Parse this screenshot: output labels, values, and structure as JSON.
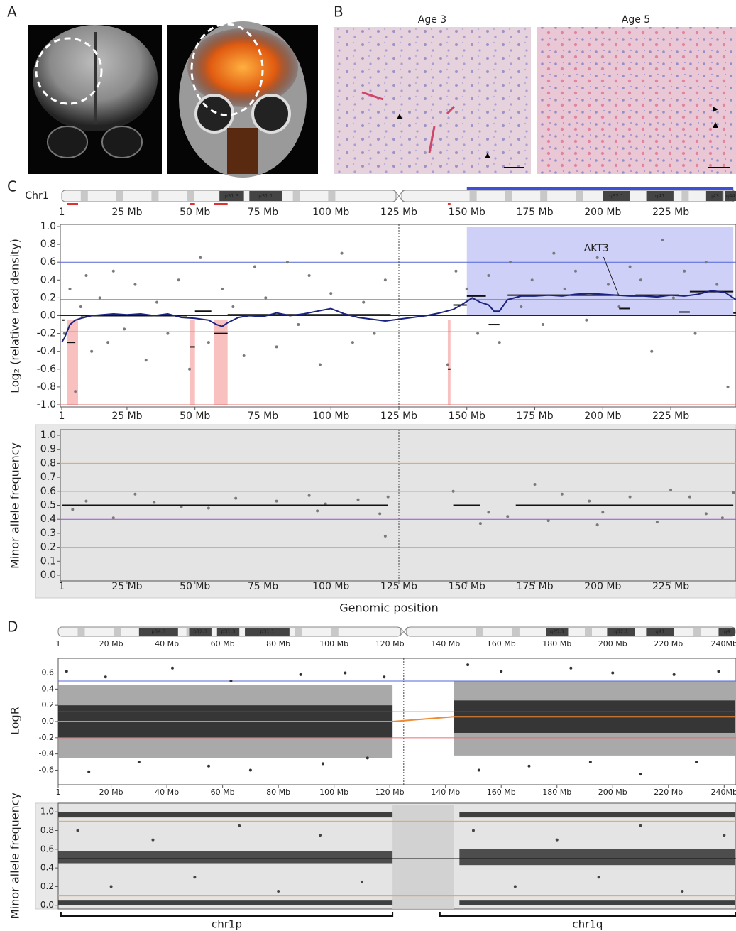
{
  "panel_labels": [
    "A",
    "B",
    "C",
    "D"
  ],
  "histology_titles": [
    "Age 3",
    "Age 5"
  ],
  "chart_data": [
    {
      "type": "scatter",
      "chromosome": "Chr1",
      "ylabel": "Log₂ (relative read density)",
      "xlim": [
        1,
        249
      ],
      "xticks": [
        1,
        {
          "value": 25,
          "label": "25 Mb"
        },
        {
          "value": 50,
          "label": "50 Mb"
        },
        {
          "value": 75,
          "label": "75 Mb"
        },
        {
          "value": 100,
          "label": "100 Mb"
        },
        {
          "value": 125,
          "label": "125 Mb"
        },
        {
          "value": 150,
          "label": "150 Mb"
        },
        {
          "value": 175,
          "label": "175 Mb"
        },
        {
          "value": 200,
          "label": "200 Mb"
        },
        {
          "value": 225,
          "label": "225 Mb"
        }
      ],
      "ylim": [
        -1,
        1
      ],
      "yticks": [
        {
          "value": -1,
          "label": "-1.0"
        },
        {
          "value": -0.8,
          "label": "-0.8"
        },
        {
          "value": -0.6,
          "label": "-0.6"
        },
        {
          "value": -0.4,
          "label": "-0.4"
        },
        {
          "value": -0.2,
          "label": "-0.2"
        },
        {
          "value": 0,
          "label": "0.0"
        },
        {
          "value": 0.2,
          "label": "0.2"
        },
        {
          "value": 0.4,
          "label": "0.4"
        },
        {
          "value": 0.6,
          "label": "0.6"
        },
        {
          "value": 0.8,
          "label": "0.8"
        },
        {
          "value": 1,
          "label": "1.0"
        }
      ],
      "ideogram": [
        {
          "label": "p31.3",
          "start": 59,
          "end": 68
        },
        {
          "label": "p31.1",
          "start": 70,
          "end": 82
        },
        {
          "label": "q32.1",
          "start": 200,
          "end": 210
        },
        {
          "label": "q41",
          "start": 216,
          "end": 226
        },
        {
          "label": "q43",
          "start": 238,
          "end": 244
        },
        {
          "label": "q44",
          "start": 245,
          "end": 249
        }
      ],
      "regions": [
        {
          "start": 150,
          "end": 248,
          "low": 0,
          "high": 1,
          "color": "#c9cbf6"
        },
        {
          "start": 3,
          "end": 7,
          "low": -1,
          "high": -0.05,
          "color": "#f8b9b9"
        },
        {
          "start": 48,
          "end": 50,
          "low": -1,
          "high": -0.05,
          "color": "#f8b9b9"
        },
        {
          "start": 57,
          "end": 62,
          "low": -1,
          "high": -0.05,
          "color": "#f8b9b9"
        },
        {
          "start": 143,
          "end": 144,
          "low": -1,
          "high": -0.05,
          "color": "#f8b9b9"
        }
      ],
      "hlines": [
        {
          "value": 0.6,
          "color": "#5566d8"
        },
        {
          "value": 0.18,
          "color": "#5566d8"
        },
        {
          "value": 0,
          "color": "#222"
        },
        {
          "value": -0.18,
          "color": "#e07070"
        },
        {
          "value": -1,
          "color": "#e07070"
        }
      ],
      "vline": 125,
      "points": {
        "color": "#7a7a7a",
        "x": [
          2,
          4,
          6,
          8,
          10,
          12,
          15,
          18,
          20,
          24,
          28,
          32,
          36,
          40,
          44,
          48,
          52,
          55,
          60,
          64,
          68,
          72,
          76,
          80,
          84,
          88,
          92,
          96,
          100,
          104,
          108,
          112,
          116,
          120,
          143,
          146,
          150,
          154,
          158,
          162,
          166,
          170,
          174,
          178,
          182,
          186,
          190,
          194,
          198,
          202,
          206,
          210,
          214,
          218,
          222,
          226,
          230,
          234,
          238,
          242,
          246
        ],
        "values": [
          -0.2,
          0.3,
          -0.85,
          0.1,
          0.45,
          -0.4,
          0.2,
          -0.3,
          0.5,
          -0.15,
          0.35,
          -0.5,
          0.15,
          -0.2,
          0.4,
          -0.6,
          0.65,
          -0.3,
          0.3,
          0.1,
          -0.45,
          0.55,
          0.2,
          -0.35,
          0.6,
          -0.1,
          0.45,
          -0.55,
          0.25,
          0.7,
          -0.3,
          0.15,
          -0.2,
          0.4,
          -0.55,
          0.5,
          0.3,
          -0.2,
          0.45,
          -0.3,
          0.6,
          0.1,
          0.4,
          -0.1,
          0.7,
          0.3,
          0.5,
          -0.05,
          0.65,
          0.35,
          0.1,
          0.55,
          0.4,
          -0.4,
          0.85,
          0.2,
          0.5,
          -0.2,
          0.6,
          0.35,
          -0.8
        ]
      },
      "segments": {
        "color": "#111",
        "start": [
          1,
          3,
          8,
          48,
          50,
          57,
          62,
          143,
          145,
          150,
          158,
          165,
          206,
          212,
          228,
          232,
          248
        ],
        "end": [
          2,
          6,
          47,
          50,
          56,
          62,
          122,
          144,
          150,
          157,
          162,
          206,
          210,
          228,
          232,
          248,
          249
        ],
        "values": [
          -0.05,
          -0.3,
          0,
          -0.35,
          0.05,
          -0.2,
          0.01,
          -0.6,
          0.12,
          0.22,
          -0.1,
          0.23,
          0.08,
          0.23,
          0.04,
          0.27,
          0.03
        ]
      },
      "line": {
        "color": "#1a237e",
        "x": [
          1,
          2,
          4,
          6,
          8,
          12,
          16,
          20,
          25,
          30,
          35,
          40,
          45,
          50,
          55,
          58,
          60,
          62,
          66,
          70,
          75,
          80,
          85,
          90,
          95,
          100,
          105,
          110,
          115,
          120,
          125,
          130,
          135,
          140,
          145,
          148,
          150,
          152,
          155,
          158,
          160,
          162,
          165,
          170,
          175,
          180,
          185,
          190,
          195,
          200,
          205,
          210,
          215,
          220,
          225,
          230,
          235,
          240,
          245,
          249
        ],
        "values": [
          -0.3,
          -0.25,
          -0.1,
          -0.05,
          -0.03,
          0,
          0.01,
          0.02,
          0.01,
          0.02,
          0,
          0.02,
          -0.02,
          -0.03,
          -0.05,
          -0.1,
          -0.12,
          -0.08,
          -0.02,
          0,
          -0.01,
          0.03,
          0,
          0.02,
          0.05,
          0.08,
          0.02,
          -0.02,
          -0.04,
          -0.06,
          -0.04,
          -0.02,
          0,
          0.03,
          0.07,
          0.12,
          0.16,
          0.2,
          0.15,
          0.12,
          0.05,
          0.05,
          0.18,
          0.22,
          0.22,
          0.23,
          0.22,
          0.24,
          0.25,
          0.24,
          0.23,
          0.22,
          0.22,
          0.21,
          0.23,
          0.22,
          0.24,
          0.28,
          0.26,
          0.18
        ]
      },
      "annotation": {
        "text": "AKT3",
        "x": 206,
        "y": 0.22
      }
    },
    {
      "type": "scatter",
      "ylabel": "Minor allele frequency",
      "xlabel": "Genomic position",
      "xlim": [
        1,
        249
      ],
      "xticks": [
        1,
        {
          "value": 25,
          "label": "25 Mb"
        },
        {
          "value": 50,
          "label": "50 Mb"
        },
        {
          "value": 75,
          "label": "75 Mb"
        },
        {
          "value": 100,
          "label": "100 Mb"
        },
        {
          "value": 125,
          "label": "125 Mb"
        },
        {
          "value": 150,
          "label": "150 Mb"
        },
        {
          "value": 175,
          "label": "175 Mb"
        },
        {
          "value": 200,
          "label": "200 Mb"
        },
        {
          "value": 225,
          "label": "225 Mb"
        }
      ],
      "ylim": [
        0,
        1
      ],
      "yticks": [
        {
          "value": 0,
          "label": "0.0"
        },
        {
          "value": 0.1,
          "label": "0.1"
        },
        {
          "value": 0.2,
          "label": "0.2"
        },
        {
          "value": 0.3,
          "label": "0.3"
        },
        {
          "value": 0.4,
          "label": "0.4"
        },
        {
          "value": 0.5,
          "label": "0.5"
        },
        {
          "value": 0.6,
          "label": "0.6"
        },
        {
          "value": 0.7,
          "label": "0.7"
        },
        {
          "value": 0.8,
          "label": "0.8"
        },
        {
          "value": 0.9,
          "label": "0.9"
        },
        {
          "value": 1,
          "label": "1.0"
        }
      ],
      "background": "#e4e4e4",
      "hlines": [
        {
          "value": 0.8,
          "color": "#e0a848"
        },
        {
          "value": 0.6,
          "color": "#9a4fd8"
        },
        {
          "value": 0.4,
          "color": "#9a4fd8"
        },
        {
          "value": 0.2,
          "color": "#e0a848"
        }
      ],
      "vline": 125,
      "points": {
        "color": "#7a7a7a",
        "x": [
          5,
          10,
          20,
          28,
          35,
          45,
          55,
          65,
          80,
          92,
          95,
          98,
          110,
          118,
          120,
          121,
          145,
          155,
          158,
          165,
          175,
          180,
          185,
          195,
          198,
          200,
          210,
          220,
          225,
          232,
          238,
          244,
          248
        ],
        "values": [
          0.47,
          0.53,
          0.41,
          0.58,
          0.52,
          0.49,
          0.48,
          0.55,
          0.53,
          0.57,
          0.46,
          0.51,
          0.54,
          0.44,
          0.28,
          0.56,
          0.6,
          0.37,
          0.45,
          0.42,
          0.65,
          0.39,
          0.58,
          0.53,
          0.36,
          0.45,
          0.56,
          0.38,
          0.61,
          0.56,
          0.44,
          0.41,
          0.59
        ]
      },
      "segments": {
        "color": "#111",
        "start": [
          1,
          145,
          168
        ],
        "end": [
          121,
          155,
          248
        ],
        "values": [
          0.5,
          0.5,
          0.5
        ]
      }
    },
    {
      "type": "scatter",
      "ylabel": "LogR",
      "xlim": [
        1,
        244
      ],
      "xticks": [
        1,
        {
          "value": 20,
          "label": "20 Mb"
        },
        {
          "value": 40,
          "label": "40 Mb"
        },
        {
          "value": 60,
          "label": "60 Mb"
        },
        {
          "value": 80,
          "label": "80 Mb"
        },
        {
          "value": 100,
          "label": "100 Mb"
        },
        {
          "value": 120,
          "label": "120 Mb"
        },
        {
          "value": 140,
          "label": "140 Mb"
        },
        {
          "value": 160,
          "label": "160 Mb"
        },
        {
          "value": 180,
          "label": "180 Mb"
        },
        {
          "value": 200,
          "label": "200 Mb"
        },
        {
          "value": 220,
          "label": "220 Mb"
        },
        {
          "value": 240,
          "label": "240Mb"
        }
      ],
      "ylim": [
        -0.78,
        0.78
      ],
      "yticks": [
        {
          "value": -0.6,
          "label": "-0.6"
        },
        {
          "value": -0.4,
          "label": "-0.4"
        },
        {
          "value": -0.2,
          "label": "-0.2"
        },
        {
          "value": 0,
          "label": "0.0"
        },
        {
          "value": 0.2,
          "label": "0.2"
        },
        {
          "value": 0.4,
          "label": "0.4"
        },
        {
          "value": 0.6,
          "label": "0.6"
        }
      ],
      "ideogram": [
        {
          "label": "p34.3",
          "start": 30,
          "end": 44
        },
        {
          "label": "p32.3",
          "start": 48,
          "end": 56
        },
        {
          "label": "p31.3",
          "start": 58,
          "end": 66
        },
        {
          "label": "p31.1",
          "start": 68,
          "end": 84
        },
        {
          "label": "q25.3",
          "start": 176,
          "end": 184
        },
        {
          "label": "q32.1",
          "start": 198,
          "end": 208
        },
        {
          "label": "q41",
          "start": 212,
          "end": 222
        },
        {
          "label": "q4",
          "start": 238,
          "end": 244
        }
      ],
      "bands": [
        {
          "start": 1,
          "end": 121,
          "low": -0.45,
          "high": 0.45,
          "color": "#9a9a9a"
        },
        {
          "start": 143,
          "end": 244,
          "low": -0.42,
          "high": 0.5,
          "color": "#9a9a9a"
        },
        {
          "start": 1,
          "end": 121,
          "low": -0.2,
          "high": 0.2,
          "color": "#222"
        },
        {
          "start": 143,
          "end": 244,
          "low": -0.14,
          "high": 0.26,
          "color": "#222"
        }
      ],
      "hlines": [
        {
          "value": 0.5,
          "color": "#5566d8"
        },
        {
          "value": 0.12,
          "color": "#5566d8"
        },
        {
          "value": -0.2,
          "color": "#e07070"
        }
      ],
      "vline": 125,
      "points": {
        "color": "#333",
        "x": [
          4,
          12,
          18,
          30,
          42,
          55,
          63,
          70,
          88,
          96,
          104,
          112,
          118,
          148,
          152,
          160,
          170,
          185,
          192,
          200,
          210,
          222,
          230,
          238
        ],
        "values": [
          0.62,
          -0.62,
          0.55,
          -0.5,
          0.66,
          -0.55,
          0.5,
          -0.6,
          0.58,
          -0.52,
          0.6,
          -0.45,
          0.55,
          0.7,
          -0.6,
          0.62,
          -0.55,
          0.66,
          -0.5,
          0.6,
          -0.65,
          0.58,
          -0.5,
          0.62
        ]
      },
      "line": {
        "color": "#f08a30",
        "x": [
          1,
          121,
          143,
          244
        ],
        "values": [
          0,
          0,
          0.06,
          0.06
        ]
      }
    },
    {
      "type": "scatter",
      "ylabel": "Minor allele frequency",
      "xlim": [
        1,
        244
      ],
      "ylim": [
        -0.04,
        1.07
      ],
      "yticks": [
        {
          "value": 0,
          "label": "0.0"
        },
        {
          "value": 0.2,
          "label": "0.2"
        },
        {
          "value": 0.4,
          "label": "0.4"
        },
        {
          "value": 0.6,
          "label": "0.6"
        },
        {
          "value": 0.8,
          "label": "0.8"
        },
        {
          "value": 1,
          "label": "1.0"
        }
      ],
      "background": "#e4e4e4",
      "regions": [
        {
          "start": 121,
          "end": 143,
          "low": -0.04,
          "high": 1.07,
          "color": "#cfcfcf"
        }
      ],
      "bands": [
        {
          "start": 1,
          "end": 121,
          "low": 0.94,
          "high": 1.0,
          "color": "#222"
        },
        {
          "start": 1,
          "end": 121,
          "low": 0.45,
          "high": 0.58,
          "color": "#333"
        },
        {
          "start": 1,
          "end": 121,
          "low": 0,
          "high": 0.05,
          "color": "#222"
        },
        {
          "start": 145,
          "end": 244,
          "low": 0.94,
          "high": 1.0,
          "color": "#222"
        },
        {
          "start": 145,
          "end": 244,
          "low": 0.43,
          "high": 0.6,
          "color": "#333"
        },
        {
          "start": 145,
          "end": 244,
          "low": 0,
          "high": 0.05,
          "color": "#222"
        }
      ],
      "hlines": [
        {
          "value": 0.9,
          "color": "#e0a848"
        },
        {
          "value": 0.58,
          "color": "#9a4fd8"
        },
        {
          "value": 0.5,
          "color": "#111"
        },
        {
          "value": 0.42,
          "color": "#9a4fd8"
        },
        {
          "value": 0.1,
          "color": "#e0a848"
        }
      ],
      "points": {
        "color": "#444",
        "x": [
          8,
          20,
          35,
          50,
          66,
          80,
          95,
          110,
          150,
          165,
          180,
          195,
          210,
          225,
          240
        ],
        "values": [
          0.8,
          0.2,
          0.7,
          0.3,
          0.85,
          0.15,
          0.75,
          0.25,
          0.8,
          0.2,
          0.7,
          0.3,
          0.85,
          0.15,
          0.75
        ]
      },
      "arms": [
        {
          "label": "chr1p",
          "start": 2,
          "end": 121
        },
        {
          "label": "chr1q",
          "start": 138,
          "end": 244
        }
      ]
    }
  ]
}
